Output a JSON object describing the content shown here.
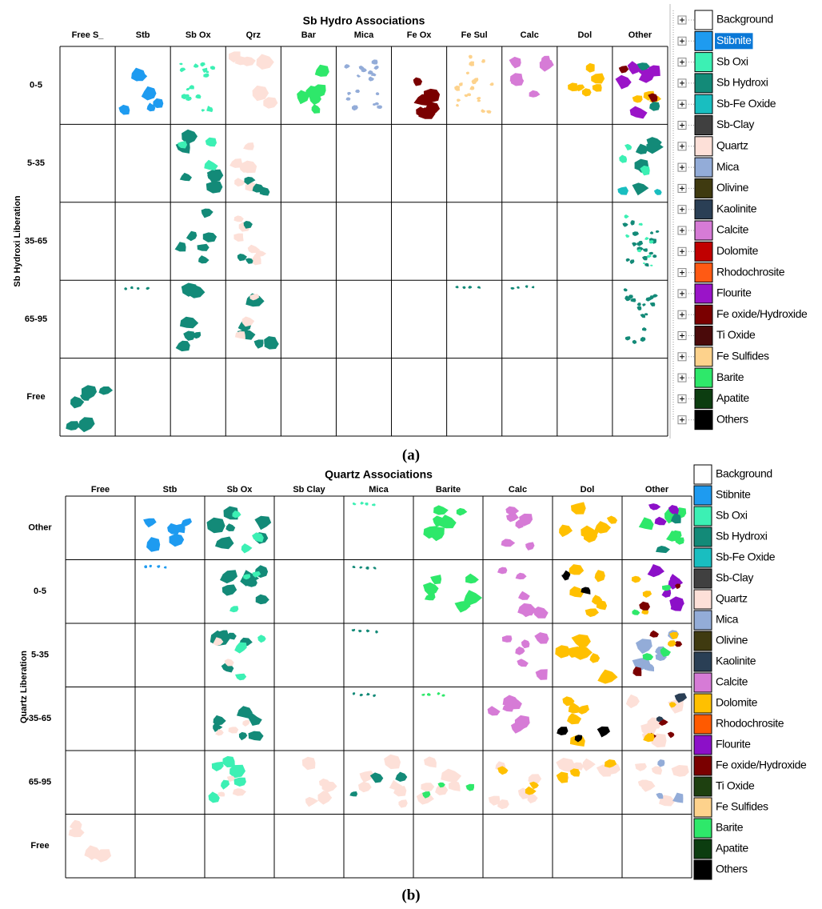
{
  "panel_a": {
    "title": "Sb Hydro Associations",
    "y_label": "Sb Hydroxi Liberation",
    "columns": [
      "Free S_",
      "Stb",
      "Sb Ox",
      "Qrz",
      "Bar",
      "Mica",
      "Fe Ox",
      "Fe Sul",
      "Calc",
      "Dol",
      "Other"
    ],
    "rows": [
      "0-5",
      "5-35",
      "35-65",
      "65-95",
      "Free"
    ],
    "legend": [
      {
        "name": "Background",
        "color": "#ffffff"
      },
      {
        "name": "Stibnite",
        "color": "#1e9bf0"
      },
      {
        "name": "Sb Oxi",
        "color": "#3cf0b4"
      },
      {
        "name": "Sb Hydroxi",
        "color": "#138a78"
      },
      {
        "name": "Sb-Fe Oxide",
        "color": "#19bec0"
      },
      {
        "name": "Sb-Clay",
        "color": "#404040"
      },
      {
        "name": "Quartz",
        "color": "#fde0d8"
      },
      {
        "name": "Mica",
        "color": "#93acd8"
      },
      {
        "name": "Olivine",
        "color": "#3f3a10"
      },
      {
        "name": "Kaolinite",
        "color": "#2a3f55"
      },
      {
        "name": "Calcite",
        "color": "#d67bd6"
      },
      {
        "name": "Dolomite",
        "color": "#c00000"
      },
      {
        "name": "Rhodochrosite",
        "color": "#ff5a14"
      },
      {
        "name": "Flourite",
        "color": "#9a14c8"
      },
      {
        "name": "Fe oxide/Hydroxide",
        "color": "#7a0000"
      },
      {
        "name": "Ti Oxide",
        "color": "#4a0a0a"
      },
      {
        "name": "Fe Sulfides",
        "color": "#fdd28c"
      },
      {
        "name": "Barite",
        "color": "#2ee86a"
      },
      {
        "name": "Apatite",
        "color": "#0c3d10"
      },
      {
        "name": "Others",
        "color": "#000000"
      }
    ],
    "highlighted_index": 1,
    "caption": "(a)"
  },
  "panel_b": {
    "title": "Quartz Associations",
    "y_label": "Quartz Liberation",
    "columns": [
      "Free",
      "Stb",
      "Sb Ox",
      "Sb Clay",
      "Mica",
      "Barite",
      "Calc",
      "Dol",
      "Other"
    ],
    "rows": [
      "Other",
      "0-5",
      "5-35",
      "35-65",
      "65-95",
      "Free"
    ],
    "legend": [
      {
        "name": "Background",
        "color": "#ffffff"
      },
      {
        "name": "Stibnite",
        "color": "#1e9bf0"
      },
      {
        "name": "Sb Oxi",
        "color": "#3cf0b4"
      },
      {
        "name": "Sb Hydroxi",
        "color": "#138a78"
      },
      {
        "name": "Sb-Fe Oxide",
        "color": "#19bec0"
      },
      {
        "name": "Sb-Clay",
        "color": "#404040"
      },
      {
        "name": "Quartz",
        "color": "#fde0d8"
      },
      {
        "name": "Mica",
        "color": "#93acd8"
      },
      {
        "name": "Olivine",
        "color": "#3f3a10"
      },
      {
        "name": "Kaolinite",
        "color": "#2a3f55"
      },
      {
        "name": "Calcite",
        "color": "#d67bd6"
      },
      {
        "name": "Dolomite",
        "color": "#ffc000"
      },
      {
        "name": "Rhodochrosite",
        "color": "#ff5a00"
      },
      {
        "name": "Flourite",
        "color": "#8c10c8"
      },
      {
        "name": "Fe oxide/Hydroxide",
        "color": "#7a0000"
      },
      {
        "name": "Ti Oxide",
        "color": "#1e4010"
      },
      {
        "name": "Fe Sulfides",
        "color": "#fdd28c"
      },
      {
        "name": "Barite",
        "color": "#2ee86a"
      },
      {
        "name": "Apatite",
        "color": "#0c3d10"
      },
      {
        "name": "Others",
        "color": "#000000"
      }
    ],
    "caption": "(b)"
  }
}
